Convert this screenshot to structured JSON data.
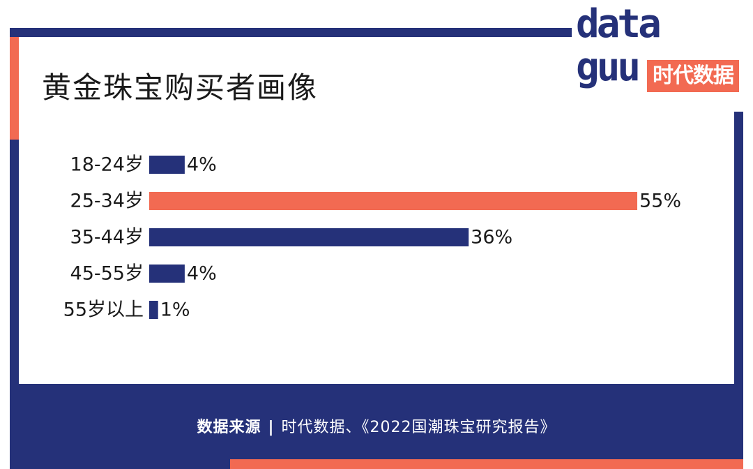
{
  "chart_data": {
    "type": "bar",
    "orientation": "horizontal",
    "title": "黄金珠宝购买者画像",
    "categories": [
      "18-24岁",
      "25-34岁",
      "35-44岁",
      "45-55岁",
      "55岁以上"
    ],
    "values": [
      4,
      55,
      36,
      4,
      1
    ],
    "value_labels": [
      "4%",
      "55%",
      "36%",
      "4%",
      "1%"
    ],
    "bar_colors": [
      "#253179",
      "#F26A52",
      "#253179",
      "#253179",
      "#253179"
    ],
    "xlim": [
      0,
      55
    ],
    "grid": false
  },
  "colors": {
    "navy": "#253179",
    "orange": "#F26A52"
  },
  "logo": {
    "word": "data",
    "word2": "guu",
    "badge": "时代数据"
  },
  "footer": {
    "source_label": "数据来源",
    "separator": "|",
    "source_text": "时代数据、《2022国潮珠宝研究报告》"
  }
}
